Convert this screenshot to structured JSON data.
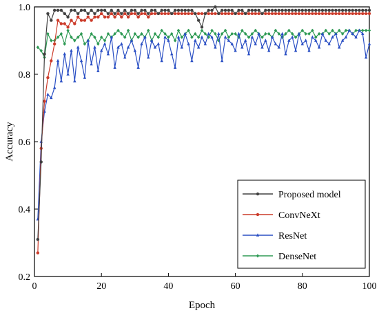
{
  "chart_data": {
    "type": "line",
    "title": "",
    "xlabel": "Epoch",
    "ylabel": "Accuracy",
    "xlim": [
      0,
      100
    ],
    "ylim": [
      0.2,
      1.0
    ],
    "xticks": [
      0,
      20,
      40,
      60,
      80,
      100
    ],
    "yticks": [
      0.2,
      0.4,
      0.6,
      0.8,
      1.0
    ],
    "xtick_labels": [
      "0",
      "20",
      "40",
      "60",
      "80",
      "100"
    ],
    "ytick_labels": [
      "0.2",
      "0.4",
      "0.6",
      "0.8",
      "1.0"
    ],
    "grid": false,
    "legend_position": "bottom-right",
    "series": [
      {
        "name": "Proposed model",
        "color": "#404040",
        "marker": "circle",
        "x": [
          1,
          2,
          3,
          4,
          5,
          6,
          7,
          8,
          9,
          10,
          11,
          12,
          13,
          14,
          15,
          16,
          17,
          18,
          19,
          20,
          21,
          22,
          23,
          24,
          25,
          26,
          27,
          28,
          29,
          30,
          31,
          32,
          33,
          34,
          35,
          36,
          37,
          38,
          39,
          40,
          41,
          42,
          43,
          44,
          45,
          46,
          47,
          48,
          49,
          50,
          51,
          52,
          53,
          54,
          55,
          56,
          57,
          58,
          59,
          60,
          61,
          62,
          63,
          64,
          65,
          66,
          67,
          68,
          69,
          70,
          71,
          72,
          73,
          74,
          75,
          76,
          77,
          78,
          79,
          80,
          81,
          82,
          83,
          84,
          85,
          86,
          87,
          88,
          89,
          90,
          91,
          92,
          93,
          94,
          95,
          96,
          97,
          98,
          99,
          100
        ],
        "y": [
          0.31,
          0.54,
          0.86,
          0.98,
          0.96,
          0.99,
          0.99,
          0.99,
          0.98,
          0.97,
          0.99,
          0.99,
          0.98,
          0.99,
          0.99,
          0.98,
          0.99,
          0.98,
          0.99,
          0.99,
          0.99,
          0.98,
          0.99,
          0.98,
          0.99,
          0.98,
          0.99,
          0.98,
          0.99,
          0.99,
          0.98,
          0.99,
          0.99,
          0.98,
          0.99,
          0.99,
          0.98,
          0.99,
          0.99,
          0.99,
          0.98,
          0.99,
          0.99,
          0.99,
          0.99,
          0.99,
          0.99,
          0.98,
          0.96,
          0.94,
          0.98,
          0.99,
          0.99,
          1.0,
          0.98,
          0.99,
          0.99,
          0.99,
          0.99,
          0.98,
          0.99,
          0.99,
          0.98,
          0.99,
          0.99,
          0.99,
          0.99,
          0.98,
          0.99,
          0.99,
          0.99,
          0.99,
          0.99,
          0.99,
          0.99,
          0.99,
          0.99,
          0.99,
          0.99,
          0.99,
          0.99,
          0.99,
          0.99,
          0.99,
          0.99,
          0.99,
          0.99,
          0.99,
          0.99,
          0.99,
          0.99,
          0.99,
          0.99,
          0.99,
          0.99,
          0.99,
          0.99,
          0.99,
          0.99,
          0.99
        ]
      },
      {
        "name": "ConvNeXt",
        "color": "#cc3b2a",
        "marker": "circle",
        "x": [
          1,
          2,
          3,
          4,
          5,
          6,
          7,
          8,
          9,
          10,
          11,
          12,
          13,
          14,
          15,
          16,
          17,
          18,
          19,
          20,
          21,
          22,
          23,
          24,
          25,
          26,
          27,
          28,
          29,
          30,
          31,
          32,
          33,
          34,
          35,
          36,
          37,
          38,
          39,
          40,
          41,
          42,
          43,
          44,
          45,
          46,
          47,
          48,
          49,
          50,
          51,
          52,
          53,
          54,
          55,
          56,
          57,
          58,
          59,
          60,
          61,
          62,
          63,
          64,
          65,
          66,
          67,
          68,
          69,
          70,
          71,
          72,
          73,
          74,
          75,
          76,
          77,
          78,
          79,
          80,
          81,
          82,
          83,
          84,
          85,
          86,
          87,
          88,
          89,
          90,
          91,
          92,
          93,
          94,
          95,
          96,
          97,
          98,
          99,
          100
        ],
        "y": [
          0.27,
          0.58,
          0.72,
          0.79,
          0.84,
          0.89,
          0.96,
          0.95,
          0.95,
          0.94,
          0.96,
          0.95,
          0.97,
          0.96,
          0.96,
          0.97,
          0.96,
          0.97,
          0.97,
          0.98,
          0.97,
          0.97,
          0.98,
          0.97,
          0.98,
          0.97,
          0.98,
          0.97,
          0.98,
          0.98,
          0.97,
          0.98,
          0.98,
          0.97,
          0.98,
          0.98,
          0.98,
          0.98,
          0.98,
          0.98,
          0.98,
          0.98,
          0.98,
          0.98,
          0.98,
          0.98,
          0.98,
          0.98,
          0.98,
          0.98,
          0.98,
          0.98,
          0.98,
          0.98,
          0.98,
          0.98,
          0.98,
          0.98,
          0.98,
          0.98,
          0.98,
          0.98,
          0.98,
          0.98,
          0.98,
          0.98,
          0.98,
          0.98,
          0.98,
          0.98,
          0.98,
          0.98,
          0.98,
          0.98,
          0.98,
          0.98,
          0.98,
          0.98,
          0.98,
          0.98,
          0.98,
          0.98,
          0.98,
          0.98,
          0.98,
          0.98,
          0.98,
          0.98,
          0.98,
          0.98,
          0.98,
          0.98,
          0.98,
          0.98,
          0.98,
          0.98,
          0.98,
          0.98,
          0.98,
          0.98
        ]
      },
      {
        "name": "ResNet",
        "color": "#2a4fc4",
        "marker": "triangle",
        "x": [
          1,
          2,
          3,
          4,
          5,
          6,
          7,
          8,
          9,
          10,
          11,
          12,
          13,
          14,
          15,
          16,
          17,
          18,
          19,
          20,
          21,
          22,
          23,
          24,
          25,
          26,
          27,
          28,
          29,
          30,
          31,
          32,
          33,
          34,
          35,
          36,
          37,
          38,
          39,
          40,
          41,
          42,
          43,
          44,
          45,
          46,
          47,
          48,
          49,
          50,
          51,
          52,
          53,
          54,
          55,
          56,
          57,
          58,
          59,
          60,
          61,
          62,
          63,
          64,
          65,
          66,
          67,
          68,
          69,
          70,
          71,
          72,
          73,
          74,
          75,
          76,
          77,
          78,
          79,
          80,
          81,
          82,
          83,
          84,
          85,
          86,
          87,
          88,
          89,
          90,
          91,
          92,
          93,
          94,
          95,
          96,
          97,
          98,
          99,
          100
        ],
        "y": [
          0.37,
          0.6,
          0.69,
          0.74,
          0.73,
          0.76,
          0.84,
          0.78,
          0.86,
          0.8,
          0.87,
          0.78,
          0.88,
          0.84,
          0.79,
          0.9,
          0.83,
          0.88,
          0.81,
          0.87,
          0.89,
          0.86,
          0.91,
          0.82,
          0.88,
          0.89,
          0.85,
          0.88,
          0.9,
          0.87,
          0.82,
          0.89,
          0.91,
          0.85,
          0.9,
          0.88,
          0.89,
          0.84,
          0.91,
          0.9,
          0.86,
          0.82,
          0.91,
          0.88,
          0.92,
          0.89,
          0.84,
          0.9,
          0.88,
          0.91,
          0.89,
          0.92,
          0.91,
          0.88,
          0.92,
          0.84,
          0.91,
          0.9,
          0.89,
          0.87,
          0.92,
          0.88,
          0.9,
          0.86,
          0.91,
          0.89,
          0.92,
          0.88,
          0.9,
          0.87,
          0.91,
          0.89,
          0.88,
          0.92,
          0.86,
          0.9,
          0.91,
          0.87,
          0.92,
          0.89,
          0.9,
          0.87,
          0.91,
          0.9,
          0.88,
          0.92,
          0.9,
          0.89,
          0.91,
          0.92,
          0.88,
          0.9,
          0.91,
          0.93,
          0.92,
          0.91,
          0.93,
          0.92,
          0.85,
          0.89
        ]
      },
      {
        "name": "DenseNet",
        "color": "#2e9a54",
        "marker": "diamond",
        "x": [
          1,
          2,
          3,
          4,
          5,
          6,
          7,
          8,
          9,
          10,
          11,
          12,
          13,
          14,
          15,
          16,
          17,
          18,
          19,
          20,
          21,
          22,
          23,
          24,
          25,
          26,
          27,
          28,
          29,
          30,
          31,
          32,
          33,
          34,
          35,
          36,
          37,
          38,
          39,
          40,
          41,
          42,
          43,
          44,
          45,
          46,
          47,
          48,
          49,
          50,
          51,
          52,
          53,
          54,
          55,
          56,
          57,
          58,
          59,
          60,
          61,
          62,
          63,
          64,
          65,
          66,
          67,
          68,
          69,
          70,
          71,
          72,
          73,
          74,
          75,
          76,
          77,
          78,
          79,
          80,
          81,
          82,
          83,
          84,
          85,
          86,
          87,
          88,
          89,
          90,
          91,
          92,
          93,
          94,
          95,
          96,
          97,
          98,
          99,
          100
        ],
        "y": [
          0.88,
          0.87,
          0.85,
          0.92,
          0.9,
          0.9,
          0.91,
          0.92,
          0.89,
          0.93,
          0.91,
          0.9,
          0.91,
          0.92,
          0.89,
          0.9,
          0.92,
          0.91,
          0.89,
          0.91,
          0.9,
          0.92,
          0.91,
          0.92,
          0.93,
          0.92,
          0.91,
          0.93,
          0.9,
          0.92,
          0.91,
          0.92,
          0.91,
          0.93,
          0.9,
          0.92,
          0.91,
          0.93,
          0.92,
          0.91,
          0.92,
          0.9,
          0.93,
          0.91,
          0.92,
          0.93,
          0.91,
          0.92,
          0.91,
          0.93,
          0.92,
          0.91,
          0.93,
          0.92,
          0.9,
          0.92,
          0.93,
          0.91,
          0.92,
          0.92,
          0.91,
          0.93,
          0.92,
          0.91,
          0.92,
          0.93,
          0.92,
          0.91,
          0.92,
          0.92,
          0.91,
          0.93,
          0.92,
          0.91,
          0.92,
          0.93,
          0.92,
          0.91,
          0.92,
          0.93,
          0.92,
          0.92,
          0.93,
          0.91,
          0.92,
          0.92,
          0.93,
          0.92,
          0.93,
          0.92,
          0.93,
          0.92,
          0.93,
          0.93,
          0.92,
          0.93,
          0.93,
          0.93,
          0.93,
          0.93
        ]
      }
    ]
  }
}
